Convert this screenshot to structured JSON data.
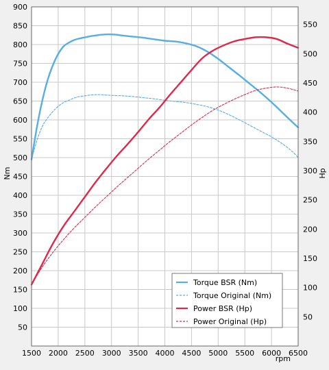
{
  "chart_data": {
    "type": "line",
    "xlabel": "rpm",
    "ylabel_left": "Nm",
    "ylabel_right": "Hp",
    "xlim": [
      1500,
      6500
    ],
    "ylim_left": [
      0,
      900
    ],
    "ylim_right": [
      0,
      580
    ],
    "x_ticks": [
      "1500",
      "2000",
      "2500",
      "3000",
      "3500",
      "4000",
      "4500",
      "5000",
      "5500",
      "6000",
      "6500"
    ],
    "y_ticks_left": [
      "50",
      "100",
      "150",
      "200",
      "250",
      "300",
      "350",
      "400",
      "450",
      "500",
      "550",
      "600",
      "650",
      "700",
      "750",
      "800",
      "850",
      "900"
    ],
    "y_ticks_right": [
      "50",
      "100",
      "150",
      "200",
      "250",
      "300",
      "350",
      "400",
      "450",
      "500",
      "550"
    ],
    "grid": true,
    "legend_position": "bottom-right",
    "series": [
      {
        "name": "Torque BSR (Nm)",
        "axis": "left",
        "color": "#56aee6",
        "style": "solid",
        "x": [
          1500,
          1600,
          1700,
          1800,
          1900,
          2000,
          2100,
          2200,
          2300,
          2400,
          2500,
          2600,
          2700,
          2800,
          2900,
          3000,
          3100,
          3200,
          3400,
          3600,
          3800,
          4000,
          4200,
          4400,
          4600,
          4800,
          5000,
          5200,
          5400,
          5600,
          5800,
          6000,
          6200,
          6400,
          6500
        ],
        "y": [
          495,
          580,
          650,
          705,
          745,
          775,
          795,
          805,
          812,
          816,
          819,
          822,
          824,
          826,
          827,
          827,
          826,
          824,
          821,
          818,
          814,
          810,
          808,
          803,
          795,
          781,
          762,
          740,
          718,
          695,
          672,
          647,
          620,
          593,
          580
        ]
      },
      {
        "name": "Torque Original (Nm)",
        "axis": "left",
        "color": "#56aee6",
        "style": "dashed",
        "x": [
          1500,
          1600,
          1700,
          1800,
          1900,
          2000,
          2100,
          2200,
          2300,
          2400,
          2500,
          2600,
          2700,
          2800,
          2900,
          3000,
          3200,
          3400,
          3600,
          3800,
          4000,
          4200,
          4400,
          4600,
          4800,
          5000,
          5200,
          5400,
          5600,
          5800,
          6000,
          6200,
          6400,
          6500
        ],
        "y": [
          495,
          545,
          582,
          605,
          622,
          636,
          646,
          652,
          658,
          662,
          664,
          666,
          667,
          667,
          666,
          665,
          664,
          662,
          659,
          656,
          652,
          649,
          646,
          641,
          635,
          626,
          614,
          600,
          585,
          570,
          555,
          537,
          515,
          500
        ]
      },
      {
        "name": "Power BSR (Hp)",
        "axis": "right",
        "color": "#e0284a",
        "style": "solid",
        "x": [
          1500,
          1700,
          1900,
          2100,
          2300,
          2500,
          2700,
          2900,
          3100,
          3300,
          3500,
          3700,
          3900,
          4100,
          4300,
          4500,
          4700,
          4900,
          5100,
          5300,
          5500,
          5700,
          5900,
          6100,
          6300,
          6500
        ],
        "y": [
          105,
          140,
          175,
          205,
          230,
          255,
          280,
          303,
          325,
          345,
          366,
          388,
          408,
          430,
          451,
          472,
          492,
          505,
          514,
          521,
          525,
          528,
          528,
          525,
          517,
          510
        ]
      },
      {
        "name": "Power Original (Hp)",
        "axis": "right",
        "color": "#e0284a",
        "style": "dashed",
        "x": [
          1500,
          1700,
          1900,
          2100,
          2300,
          2500,
          2700,
          2900,
          3100,
          3300,
          3500,
          3700,
          3900,
          4100,
          4300,
          4500,
          4700,
          4900,
          5100,
          5300,
          5500,
          5700,
          5900,
          6100,
          6300,
          6500
        ],
        "y": [
          105,
          135,
          160,
          182,
          202,
          220,
          238,
          255,
          272,
          288,
          304,
          320,
          335,
          350,
          364,
          378,
          391,
          403,
          413,
          422,
          430,
          437,
          441,
          443,
          441,
          436
        ]
      }
    ]
  }
}
